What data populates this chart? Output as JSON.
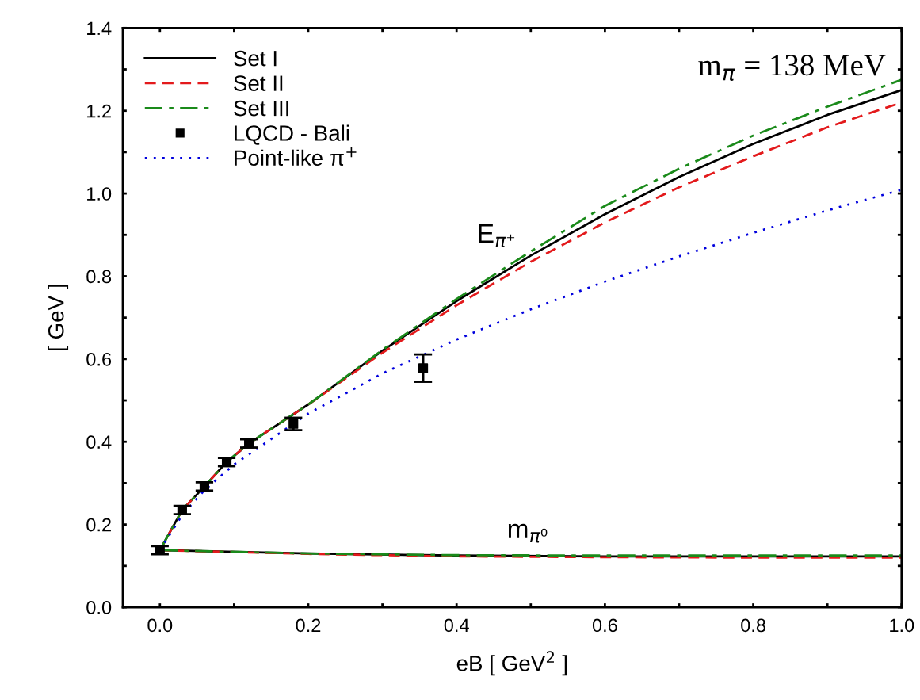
{
  "chart_data": {
    "type": "line",
    "xlabel": "eB [ GeV$^{2}$ ]",
    "ylabel": "[ GeV ]",
    "xlim": [
      -0.05,
      1.0
    ],
    "ylim": [
      0,
      1.4
    ],
    "xticks": [
      {
        "value": 0,
        "label": "0.0"
      },
      {
        "value": 0.1,
        "label": null
      },
      0.2,
      {
        "value": 0.3,
        "label": null
      },
      0.4,
      {
        "value": 0.5,
        "label": null
      },
      0.6,
      {
        "value": 0.7,
        "label": null
      },
      0.8,
      {
        "value": 0.9,
        "label": null
      },
      {
        "value": 1,
        "label": "1.0"
      }
    ],
    "yticks": [
      {
        "value": 0,
        "label": "0.0"
      },
      {
        "value": 0.1,
        "label": null
      },
      0.2,
      {
        "value": 0.3,
        "label": null
      },
      0.4,
      {
        "value": 0.5,
        "label": null
      },
      0.6,
      {
        "value": 0.7,
        "label": null
      },
      0.8,
      {
        "value": 0.9,
        "label": null
      },
      {
        "value": 1,
        "label": "1.0"
      },
      {
        "value": 1.1,
        "label": null
      },
      1.2,
      {
        "value": 1.3,
        "label": null
      },
      1.4
    ],
    "grid": false,
    "legend": "top left",
    "series": [
      {
        "name": "Set I",
        "color": "#000000",
        "line_style": "solid",
        "marker": "none",
        "x": [
          0,
          0.03,
          0.06,
          0.09,
          0.12,
          0.2,
          0.3,
          0.4,
          0.5,
          0.6,
          0.7,
          0.8,
          0.9,
          1.0
        ],
        "values": [
          0.138,
          0.235,
          0.292,
          0.351,
          0.396,
          0.49,
          0.62,
          0.74,
          0.85,
          0.95,
          1.04,
          1.12,
          1.19,
          1.25
        ]
      },
      {
        "name": "Set II",
        "color": "#e31a1c",
        "line_style": "dashed",
        "marker": "none",
        "x": [
          0,
          0.03,
          0.06,
          0.09,
          0.12,
          0.2,
          0.3,
          0.4,
          0.5,
          0.6,
          0.7,
          0.8,
          0.9,
          1.0
        ],
        "values": [
          0.138,
          0.235,
          0.292,
          0.351,
          0.396,
          0.49,
          0.615,
          0.73,
          0.835,
          0.93,
          1.015,
          1.09,
          1.16,
          1.22
        ]
      },
      {
        "name": "Set III",
        "color": "#1a8a1a",
        "line_style": "dashdot",
        "marker": "none",
        "x": [
          0,
          0.03,
          0.06,
          0.09,
          0.12,
          0.2,
          0.3,
          0.4,
          0.5,
          0.6,
          0.7,
          0.8,
          0.9,
          1.0
        ],
        "values": [
          0.138,
          0.235,
          0.292,
          0.351,
          0.396,
          0.49,
          0.622,
          0.745,
          0.86,
          0.97,
          1.06,
          1.14,
          1.21,
          1.275
        ]
      },
      {
        "name": "LQCD - Bali",
        "type": "scatter",
        "color": "#000000",
        "marker": "square",
        "x": [
          0,
          0.03,
          0.06,
          0.09,
          0.12,
          0.18,
          0.355
        ],
        "values": [
          0.138,
          0.235,
          0.292,
          0.351,
          0.396,
          0.443,
          0.578
        ],
        "errors": [
          0.01,
          0.01,
          0.01,
          0.01,
          0.01,
          0.015,
          0.033
        ]
      },
      {
        "name": "Point-like π$^{+}$",
        "color": "#0000dd",
        "line_style": "dotted",
        "marker": "none",
        "x": [
          0,
          0.03,
          0.06,
          0.1,
          0.2,
          0.3,
          0.4,
          0.5,
          0.6,
          0.7,
          0.8,
          0.9,
          1.0
        ],
        "values": [
          0.138,
          0.223,
          0.283,
          0.345,
          0.468,
          0.565,
          0.647,
          0.72,
          0.787,
          0.848,
          0.905,
          0.959,
          1.009
        ]
      },
      {
        "color": "#000000",
        "line_style": "solid",
        "marker": "none",
        "x": [
          0,
          0.2,
          0.4,
          0.6,
          0.8,
          1.0
        ],
        "values": [
          0.138,
          0.13,
          0.125,
          0.123,
          0.123,
          0.123
        ]
      },
      {
        "color": "#e31a1c",
        "line_style": "dashed",
        "marker": "none",
        "x": [
          0,
          0.2,
          0.4,
          0.6,
          0.8,
          1.0
        ],
        "values": [
          0.138,
          0.129,
          0.123,
          0.121,
          0.12,
          0.12
        ]
      },
      {
        "color": "#1a8a1a",
        "line_style": "dashdot",
        "marker": "none",
        "x": [
          0,
          0.2,
          0.4,
          0.6,
          0.8,
          1.0
        ],
        "values": [
          0.138,
          0.13,
          0.126,
          0.125,
          0.125,
          0.125
        ]
      }
    ],
    "annotations": [
      "m$_{π}$ = 138 MeV",
      "E$_{π⁺}$",
      "m$_{π⁰}$"
    ]
  }
}
